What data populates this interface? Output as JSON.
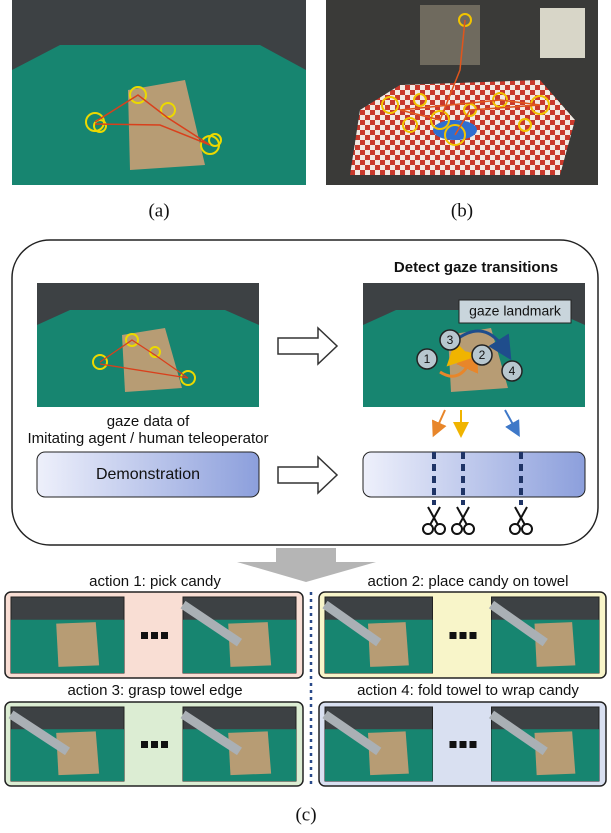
{
  "figure": {
    "panel_a": {
      "label": "(a)"
    },
    "panel_b": {
      "label": "(b)"
    },
    "panel_c": {
      "label": "(c)",
      "title": "Detect gaze transitions",
      "landmark": "gaze landmark",
      "gaze_points": [
        "1",
        "2",
        "3",
        "4"
      ],
      "caption": [
        "gaze data of",
        "Imitating agent / human teleoperator"
      ],
      "demonstration": "Demonstration",
      "actions": [
        "action 1: pick candy",
        "action 2: place candy on towel",
        "action 3: grasp towel edge",
        "action 4: fold towel to wrap candy"
      ]
    }
  }
}
